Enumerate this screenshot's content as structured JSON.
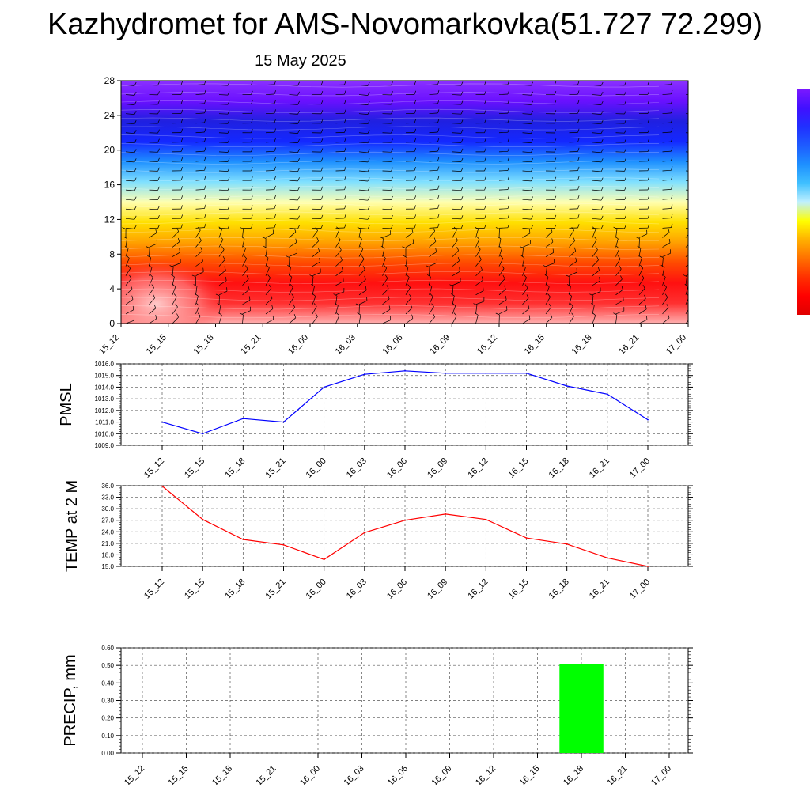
{
  "title": "Kazhydromet for AMS-Novomarkovka(51.727 72.299)",
  "subtitle": "15 May 2025",
  "colors": {
    "pmsl_line": "#0000ff",
    "temp_line": "#ff0000",
    "precip_bar": "#00ff00",
    "grid": "#555555"
  },
  "chart_data": [
    {
      "type": "heatmap",
      "title": "",
      "ylim": [
        0,
        28
      ],
      "yticks": [
        "0",
        "4",
        "8",
        "12",
        "16",
        "20",
        "24",
        "28"
      ],
      "categories": [
        "15_12",
        "15_15",
        "15_18",
        "15_21",
        "16_00",
        "16_03",
        "16_06",
        "16_09",
        "16_12",
        "16_15",
        "16_18",
        "16_21",
        "17_00"
      ],
      "color_scale": [
        "#ffb0b0",
        "#ff3030",
        "#ff1010",
        "#ff4a00",
        "#ffa000",
        "#ffe000",
        "#ffffb0",
        "#80e0ff",
        "#1e90ff",
        "#1428ff",
        "#2020e0",
        "#6a10ff",
        "#8a30ff"
      ],
      "barbs": true,
      "legend": "right"
    },
    {
      "type": "line",
      "ylabel": "PMSL",
      "ylim": [
        1009.0,
        1016.0
      ],
      "yticks": [
        "1009.0",
        "1010.0",
        "1011.0",
        "1012.0",
        "1013.0",
        "1014.0",
        "1015.0",
        "1016.0"
      ],
      "categories": [
        "15_12",
        "15_15",
        "15_18",
        "15_21",
        "16_00",
        "16_03",
        "16_06",
        "16_09",
        "16_12",
        "16_15",
        "16_18",
        "16_21",
        "17_00"
      ],
      "values": [
        1011.0,
        1010.0,
        1011.3,
        1011.0,
        1014.0,
        1015.1,
        1015.4,
        1015.2,
        1015.2,
        1015.2,
        1014.1,
        1013.4,
        1011.2
      ],
      "grid": true
    },
    {
      "type": "line",
      "ylabel": "TEMP at 2 M",
      "ylim": [
        15.0,
        36.0
      ],
      "yticks": [
        "15.0",
        "18.0",
        "21.0",
        "24.0",
        "27.0",
        "30.0",
        "33.0",
        "36.0"
      ],
      "categories": [
        "15_12",
        "15_15",
        "15_18",
        "15_21",
        "16_00",
        "16_03",
        "16_06",
        "16_09",
        "16_12",
        "16_15",
        "16_18",
        "16_21",
        "17_00"
      ],
      "values": [
        35.9,
        27.2,
        22.0,
        20.6,
        16.8,
        23.8,
        27.0,
        28.6,
        27.2,
        22.4,
        20.8,
        17.2,
        15.0
      ],
      "grid": true
    },
    {
      "type": "bar",
      "ylabel": "PRECIP, mm",
      "ylim": [
        0.0,
        0.6
      ],
      "yticks": [
        "0.00",
        "0.10",
        "0.20",
        "0.30",
        "0.40",
        "0.50",
        "0.60"
      ],
      "categories": [
        "15_12",
        "15_15",
        "15_18",
        "15_21",
        "16_00",
        "16_03",
        "16_06",
        "16_09",
        "16_12",
        "16_15",
        "16_18",
        "16_21",
        "17_00"
      ],
      "values": [
        0,
        0,
        0,
        0,
        0,
        0,
        0,
        0,
        0,
        0,
        0.51,
        0,
        0
      ],
      "grid": true
    }
  ]
}
